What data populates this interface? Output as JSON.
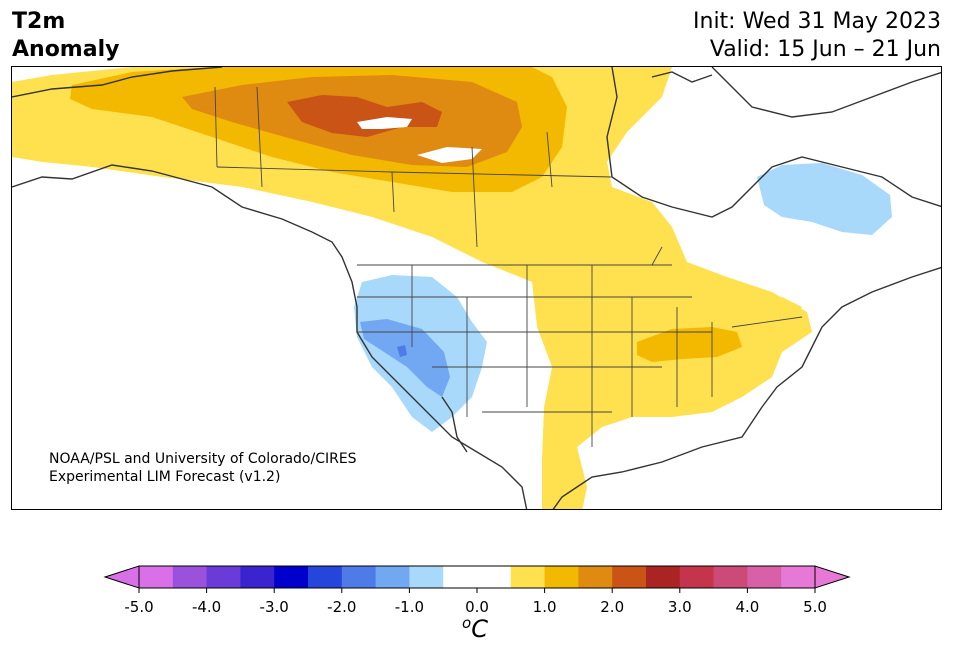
{
  "title": {
    "left_line1": "T2m",
    "left_line2": "Anomaly",
    "init": "Init: Wed 31 May 2023",
    "valid": "Valid: 15 Jun – 21 Jun"
  },
  "credit": {
    "line1": "NOAA/PSL and University of Colorado/CIRES",
    "line2": "Experimental LIM Forecast (v1.2)"
  },
  "colorbar": {
    "unit_base": "C",
    "unit_prefix": "o",
    "ticks": [
      "-5.0",
      "-4.0",
      "-3.0",
      "-2.0",
      "-1.0",
      "0.0",
      "1.0",
      "2.0",
      "3.0",
      "4.0",
      "5.0"
    ],
    "colors": [
      "#da70e8",
      "#9a52dc",
      "#6a3bd6",
      "#3a24d0",
      "#0000cc",
      "#2645da",
      "#4f7be8",
      "#72a8f2",
      "#a8d8fa",
      "#ffffff",
      "#ffffff",
      "#ffe04f",
      "#f3b800",
      "#df8a10",
      "#c95415",
      "#aa2424",
      "#c4344a",
      "#cc4a78",
      "#d760a8",
      "#e779d6"
    ],
    "under_color": "#da70e8",
    "over_color": "#e779d6"
  },
  "map": {
    "region": "North America",
    "anomaly_colors": {
      "warm_05_1": "#ffe04f",
      "warm_1_15": "#f3b800",
      "warm_15_2": "#df8a10",
      "warm_2_25": "#c95415",
      "cool_05_1": "#a8d8fa",
      "cool_1_15": "#72a8f2",
      "cool_15_2": "#4f7be8"
    }
  }
}
